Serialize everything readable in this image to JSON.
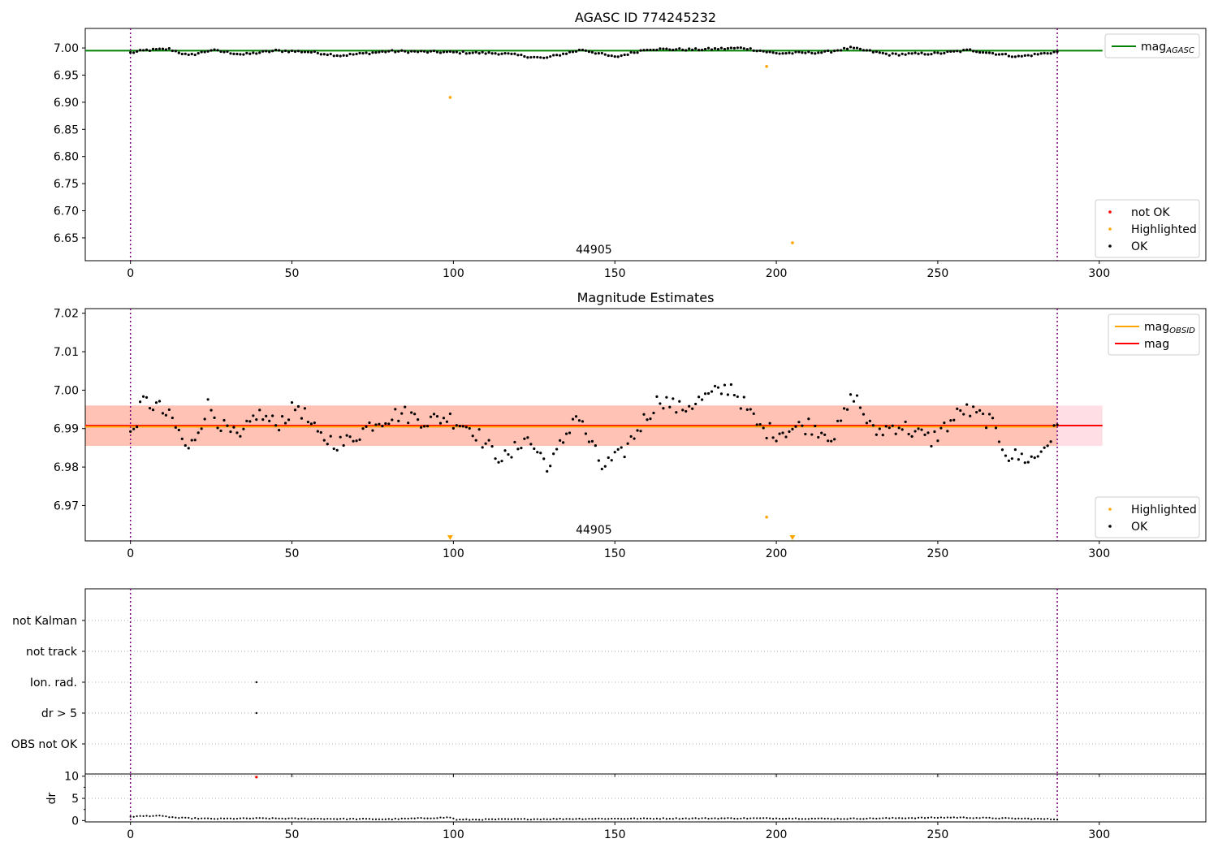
{
  "colors": {
    "ok": "#000000",
    "highlighted": "#ffa500",
    "not_ok": "#ff0000",
    "agasc_line": "#008000",
    "mag_line": "#ff0000",
    "obsid_line": "#ffa500",
    "obs_boundary": "#800080",
    "band_outer": "#ffc0cb",
    "band_inner": "#ffa07a"
  },
  "chart_data": [
    {
      "type": "scatter",
      "title": "AGASC ID 774245232",
      "xlabel": "",
      "ylabel": "",
      "xlim": [
        -14,
        333
      ],
      "ylim": [
        6.608,
        7.036
      ],
      "x_ticks": [
        "0",
        "50",
        "100",
        "150",
        "200",
        "250",
        "300"
      ],
      "y_ticks": [
        "6.65",
        "6.70",
        "6.75",
        "6.80",
        "6.85",
        "6.90",
        "6.95",
        "7.00"
      ],
      "y_tick_values": [
        6.65,
        6.7,
        6.75,
        6.8,
        6.85,
        6.9,
        6.95,
        7.0
      ],
      "grid": false,
      "lines": [
        {
          "name": "mag_AGASC",
          "y": 6.995,
          "color": "#008000"
        }
      ],
      "obsid_boundaries": [
        0,
        287
      ],
      "obsid_label": "44905",
      "legend_upper": [
        {
          "label_main": "mag",
          "label_sub": "AGASC",
          "kind": "line",
          "color": "#008000"
        }
      ],
      "legend_lower": [
        {
          "label": "not OK",
          "kind": "dot",
          "color": "#ff0000"
        },
        {
          "label": "Highlighted",
          "kind": "dot",
          "color": "#ffa500"
        },
        {
          "label": "OK",
          "kind": "dot",
          "color": "#000000"
        }
      ],
      "series": [
        {
          "name": "Highlighted",
          "color": "#ffa500",
          "points": [
            [
              99,
              6.909
            ],
            [
              197,
              6.966
            ],
            [
              205,
              6.641
            ]
          ]
        }
      ],
      "ok_curve": {
        "count": 288,
        "anchors": [
          [
            0,
            6.991
          ],
          [
            5,
            6.996
          ],
          [
            12,
            6.998
          ],
          [
            18,
            6.986
          ],
          [
            25,
            6.996
          ],
          [
            35,
            6.988
          ],
          [
            45,
            6.995
          ],
          [
            55,
            6.993
          ],
          [
            65,
            6.986
          ],
          [
            80,
            6.994
          ],
          [
            100,
            6.992
          ],
          [
            115,
            6.99
          ],
          [
            128,
            6.981
          ],
          [
            140,
            6.997
          ],
          [
            150,
            6.983
          ],
          [
            160,
            6.998
          ],
          [
            175,
            6.997
          ],
          [
            190,
            7.0
          ],
          [
            200,
            6.99
          ],
          [
            215,
            6.992
          ],
          [
            223,
            7.0
          ],
          [
            235,
            6.988
          ],
          [
            250,
            6.99
          ],
          [
            260,
            6.996
          ],
          [
            275,
            6.984
          ],
          [
            287,
            6.993
          ]
        ]
      }
    },
    {
      "type": "scatter",
      "title": "Magnitude Estimates",
      "xlabel": "",
      "ylabel": "",
      "xlim": [
        -14,
        333
      ],
      "ylim": [
        6.9608,
        7.0212
      ],
      "x_ticks": [
        "0",
        "50",
        "100",
        "150",
        "200",
        "250",
        "300"
      ],
      "y_ticks": [
        "6.97",
        "6.98",
        "6.99",
        "7.00",
        "7.01",
        "7.02"
      ],
      "y_tick_values": [
        6.97,
        6.98,
        6.99,
        7.0,
        7.01,
        7.02
      ],
      "grid": false,
      "mag": 6.9908,
      "mag_obsid": 6.9905,
      "band_outer": [
        6.9855,
        6.996,
        301
      ],
      "band_inner": [
        6.9855,
        6.996,
        287
      ],
      "obsid_boundaries": [
        0,
        287
      ],
      "obsid_label": "44905",
      "legend_upper": [
        {
          "label_main": "mag",
          "label_sub": "OBSID",
          "kind": "line",
          "color": "#ffa500"
        },
        {
          "label_main": "mag",
          "label_sub": "",
          "kind": "line",
          "color": "#ff0000"
        }
      ],
      "legend_lower": [
        {
          "label": "Highlighted",
          "kind": "dot",
          "color": "#ffa500"
        },
        {
          "label": "OK",
          "kind": "dot",
          "color": "#000000"
        }
      ],
      "series": [
        {
          "name": "Highlighted",
          "color": "#ffa500",
          "points": [
            [
              197,
              6.967
            ]
          ]
        }
      ],
      "out_of_range_markers": [
        99,
        205
      ],
      "ok_curve": {
        "count": 288,
        "anchors": [
          [
            0,
            6.988
          ],
          [
            4,
            6.997
          ],
          [
            8,
            6.996
          ],
          [
            13,
            6.992
          ],
          [
            18,
            6.984
          ],
          [
            24,
            6.996
          ],
          [
            29,
            6.99
          ],
          [
            34,
            6.987
          ],
          [
            39,
            6.994
          ],
          [
            45,
            6.991
          ],
          [
            52,
            6.996
          ],
          [
            58,
            6.988
          ],
          [
            66,
            6.986
          ],
          [
            76,
            6.992
          ],
          [
            84,
            6.994
          ],
          [
            92,
            6.992
          ],
          [
            98,
            6.993
          ],
          [
            106,
            6.99
          ],
          [
            112,
            6.984
          ],
          [
            117,
            6.982
          ],
          [
            122,
            6.988
          ],
          [
            130,
            6.98
          ],
          [
            138,
            6.994
          ],
          [
            146,
            6.98
          ],
          [
            152,
            6.983
          ],
          [
            158,
            6.991
          ],
          [
            164,
            6.998
          ],
          [
            170,
            6.995
          ],
          [
            178,
            6.998
          ],
          [
            186,
            7.001
          ],
          [
            195,
            6.99
          ],
          [
            200,
            6.989
          ],
          [
            210,
            6.991
          ],
          [
            218,
            6.988
          ],
          [
            224,
            6.999
          ],
          [
            230,
            6.989
          ],
          [
            238,
            6.991
          ],
          [
            248,
            6.987
          ],
          [
            258,
            6.995
          ],
          [
            266,
            6.992
          ],
          [
            272,
            6.983
          ],
          [
            280,
            6.982
          ],
          [
            287,
            6.99
          ]
        ]
      }
    },
    {
      "type": "scatter",
      "title": "",
      "xlabel": "",
      "ylabel": "",
      "xlim": [
        -14,
        333
      ],
      "categories": [
        "not Kalman",
        "not track",
        "Ion. rad.",
        "dr > 5",
        "OBS not OK"
      ],
      "grid": true,
      "obsid_boundaries": [
        0,
        287
      ],
      "flags": [
        {
          "category": "Ion. rad.",
          "x": 39
        },
        {
          "category": "dr > 5",
          "x": 39
        }
      ]
    },
    {
      "type": "scatter",
      "title": "",
      "xlabel": "",
      "ylabel": "dr",
      "xlim": [
        -14,
        333
      ],
      "ylim": [
        -0.3,
        10.5
      ],
      "x_ticks": [
        "0",
        "50",
        "100",
        "150",
        "200",
        "250",
        "300"
      ],
      "y_ticks": [
        "0",
        "5",
        "10"
      ],
      "y_tick_values": [
        0,
        5,
        10
      ],
      "grid": true,
      "obsid_boundaries": [
        0,
        287
      ],
      "series": [
        {
          "name": "not OK",
          "color": "#ff0000",
          "points": [
            [
              39,
              9.8
            ]
          ]
        }
      ],
      "ok_curve": {
        "count": 288,
        "anchors": [
          [
            0,
            0.9
          ],
          [
            8,
            1.1
          ],
          [
            15,
            0.6
          ],
          [
            25,
            0.4
          ],
          [
            40,
            0.5
          ],
          [
            60,
            0.4
          ],
          [
            80,
            0.3
          ],
          [
            99,
            0.7
          ],
          [
            101,
            0.2
          ],
          [
            140,
            0.4
          ],
          [
            180,
            0.5
          ],
          [
            200,
            0.5
          ],
          [
            220,
            0.4
          ],
          [
            255,
            0.7
          ],
          [
            287,
            0.3
          ]
        ]
      }
    }
  ]
}
